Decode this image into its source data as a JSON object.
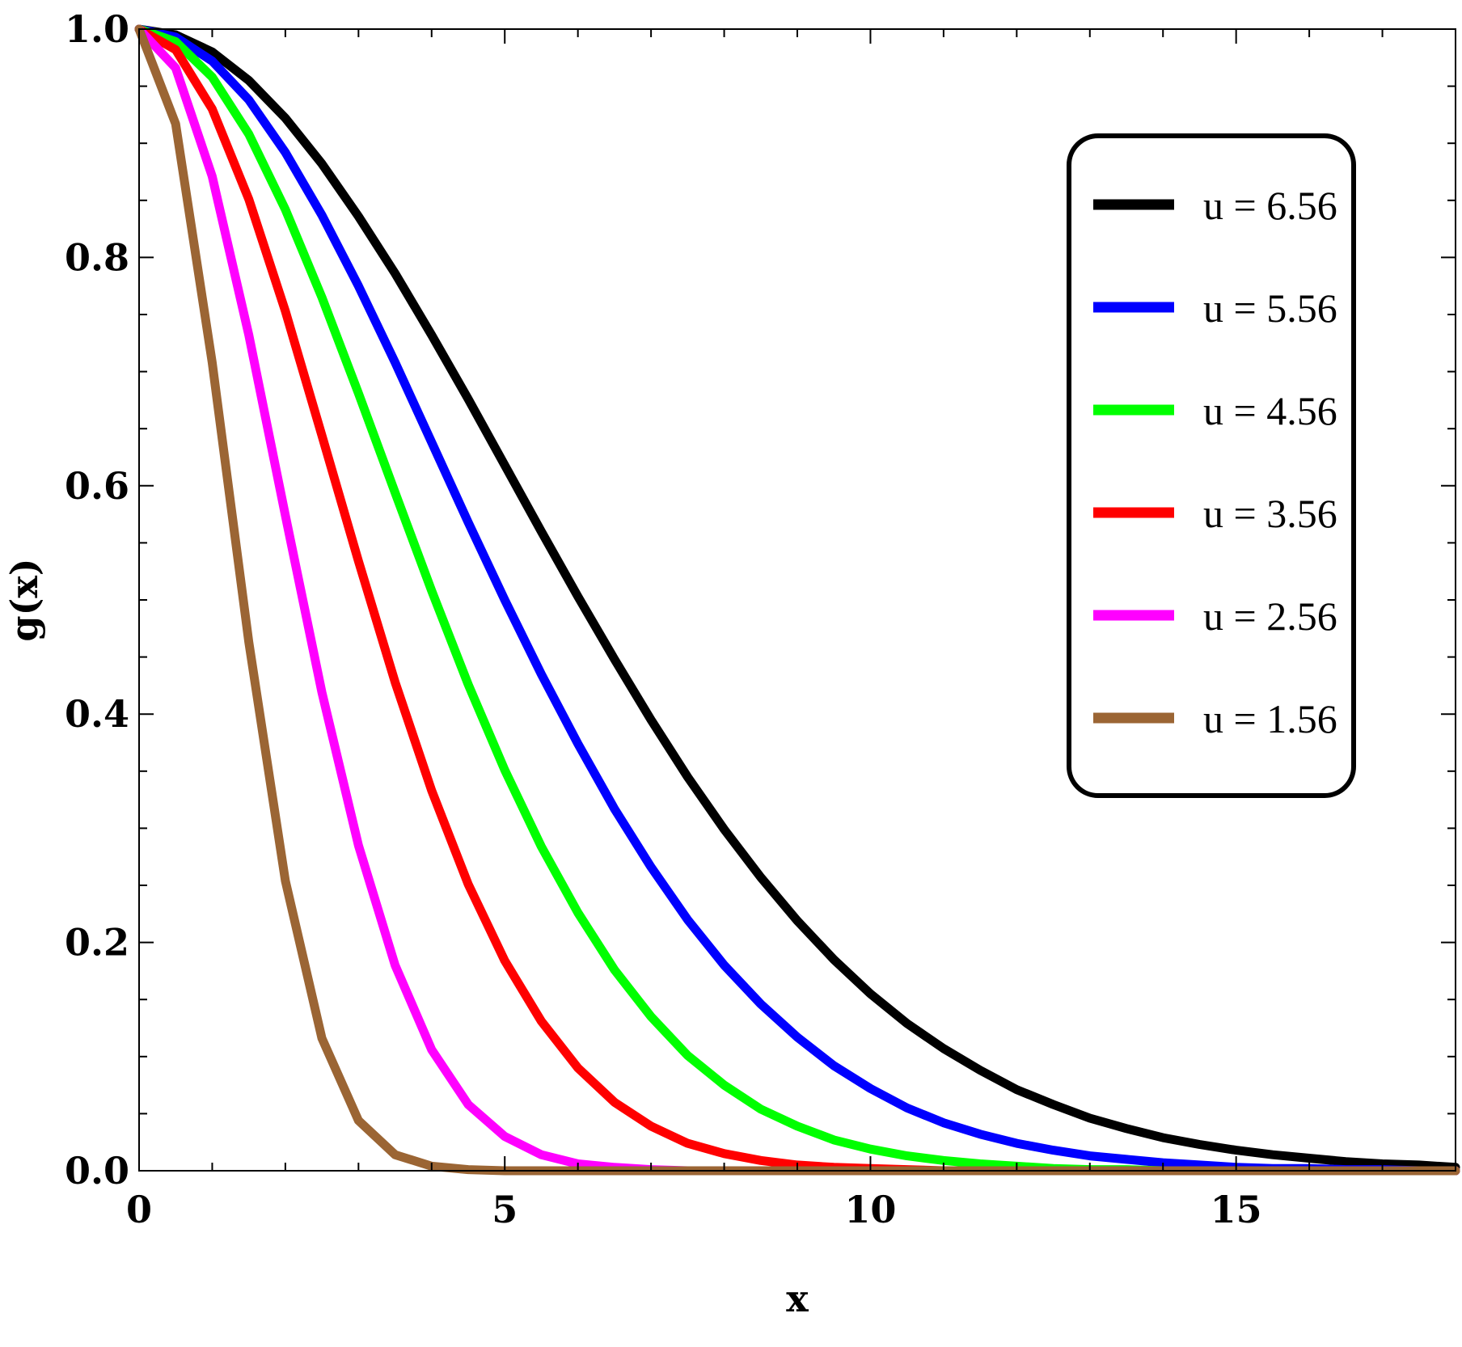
{
  "chart_data": {
    "type": "line",
    "title": "",
    "xlabel": "x",
    "ylabel": "g(x)",
    "xlim": [
      0,
      18
    ],
    "ylim": [
      0,
      1
    ],
    "x_ticks": [
      0,
      5,
      10,
      15
    ],
    "x_tick_labels": [
      "0",
      "5",
      "10",
      "15"
    ],
    "y_ticks": [
      0,
      0.2,
      0.4,
      0.6,
      0.8,
      1.0
    ],
    "y_tick_labels": [
      "0.0",
      "0.2",
      "0.4",
      "0.6",
      "0.8",
      "1.0"
    ],
    "grid": false,
    "legend_position": "top-right",
    "x": [
      0,
      0.5,
      1,
      1.5,
      2,
      2.5,
      3,
      3.5,
      4,
      4.5,
      5,
      5.5,
      6,
      6.5,
      7,
      7.5,
      8,
      8.5,
      9,
      9.5,
      10,
      10.5,
      11,
      11.5,
      12,
      12.5,
      13,
      13.5,
      14,
      14.5,
      15,
      15.5,
      16,
      16.5,
      17,
      17.5,
      18
    ],
    "series": [
      {
        "name": "u = 6.56",
        "color": "#000000",
        "values": [
          1.0,
          0.995,
          0.98,
          0.955,
          0.922,
          0.882,
          0.836,
          0.786,
          0.732,
          0.676,
          0.618,
          0.56,
          0.503,
          0.448,
          0.395,
          0.345,
          0.299,
          0.257,
          0.219,
          0.185,
          0.155,
          0.129,
          0.107,
          0.088,
          0.071,
          0.058,
          0.046,
          0.037,
          0.029,
          0.023,
          0.018,
          0.014,
          0.011,
          0.008,
          0.006,
          0.005,
          0.003
        ]
      },
      {
        "name": "u = 5.56",
        "color": "#0000ff",
        "values": [
          1.0,
          0.993,
          0.972,
          0.938,
          0.892,
          0.837,
          0.775,
          0.708,
          0.638,
          0.568,
          0.5,
          0.435,
          0.374,
          0.317,
          0.266,
          0.22,
          0.18,
          0.146,
          0.117,
          0.092,
          0.072,
          0.055,
          0.042,
          0.032,
          0.024,
          0.018,
          0.013,
          0.01,
          0.007,
          0.005,
          0.003,
          0.002,
          0.002,
          0.001,
          0.001,
          0.0,
          0.0
        ]
      },
      {
        "name": "u = 4.56",
        "color": "#00ff00",
        "values": [
          1.0,
          0.989,
          0.958,
          0.908,
          0.842,
          0.765,
          0.681,
          0.594,
          0.508,
          0.426,
          0.351,
          0.284,
          0.226,
          0.176,
          0.135,
          0.101,
          0.075,
          0.054,
          0.039,
          0.027,
          0.019,
          0.013,
          0.009,
          0.006,
          0.004,
          0.002,
          0.001,
          0.001,
          0.0,
          0.0,
          0.0,
          0.0,
          0.0,
          0.0,
          0.0,
          0.0,
          0.0
        ]
      },
      {
        "name": "u = 3.56",
        "color": "#ff0000",
        "values": [
          1.0,
          0.982,
          0.93,
          0.851,
          0.753,
          0.644,
          0.534,
          0.428,
          0.333,
          0.251,
          0.184,
          0.131,
          0.09,
          0.06,
          0.039,
          0.024,
          0.015,
          0.009,
          0.005,
          0.003,
          0.002,
          0.001,
          0.0,
          0.0,
          0.0,
          0.0,
          0.0,
          0.0,
          0.0,
          0.0,
          0.0,
          0.0,
          0.0,
          0.0,
          0.0,
          0.0,
          0.0
        ]
      },
      {
        "name": "u = 2.56",
        "color": "#ff00ff",
        "values": [
          1.0,
          0.966,
          0.871,
          0.732,
          0.574,
          0.419,
          0.285,
          0.18,
          0.106,
          0.058,
          0.03,
          0.014,
          0.006,
          0.003,
          0.001,
          0.0,
          0.0,
          0.0,
          0.0,
          0.0,
          0.0,
          0.0,
          0.0,
          0.0,
          0.0,
          0.0,
          0.0,
          0.0,
          0.0,
          0.0,
          0.0,
          0.0,
          0.0,
          0.0,
          0.0,
          0.0,
          0.0
        ]
      },
      {
        "name": "u = 1.56",
        "color": "#9b6534",
        "values": [
          1.0,
          0.917,
          0.708,
          0.463,
          0.254,
          0.116,
          0.044,
          0.014,
          0.004,
          0.001,
          0.0,
          0.0,
          0.0,
          0.0,
          0.0,
          0.0,
          0.0,
          0.0,
          0.0,
          0.0,
          0.0,
          0.0,
          0.0,
          0.0,
          0.0,
          0.0,
          0.0,
          0.0,
          0.0,
          0.0,
          0.0,
          0.0,
          0.0,
          0.0,
          0.0,
          0.0,
          0.0
        ]
      }
    ]
  }
}
